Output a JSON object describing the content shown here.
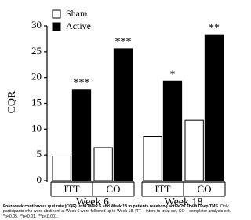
{
  "chart_data": {
    "type": "bar",
    "y_label": "CQR",
    "groups": [
      {
        "name": "Week 6",
        "categories": [
          "ITT",
          "CO"
        ]
      },
      {
        "name": "Week 18",
        "categories": [
          "ITT",
          "CO"
        ]
      }
    ],
    "series": [
      {
        "name": "Sham",
        "color": "#ffffff",
        "values": [
          4.8,
          6.4,
          8.6,
          11.7
        ]
      },
      {
        "name": "Active",
        "color": "#000000",
        "values": [
          17.7,
          25.6,
          19.3,
          28.3
        ],
        "annotations": [
          "***",
          "***",
          "*",
          "**"
        ]
      }
    ],
    "ylim": [
      0,
      30
    ],
    "yticks": [
      0,
      5,
      10,
      15,
      20,
      25,
      30
    ],
    "legend": "top-left",
    "caption": {
      "bold": "Four-week continuous quit rate (CQR) until Week 6 and Week 18 in patients receiving active or sham Deep TMS.",
      "text": "Only participants who were abstinent at Week 6 were followed up to Week 18. ITT – intent-to-treat set, CO – completer analysis set. *p<0.05, **p<0.01, ***p<0.001."
    }
  }
}
